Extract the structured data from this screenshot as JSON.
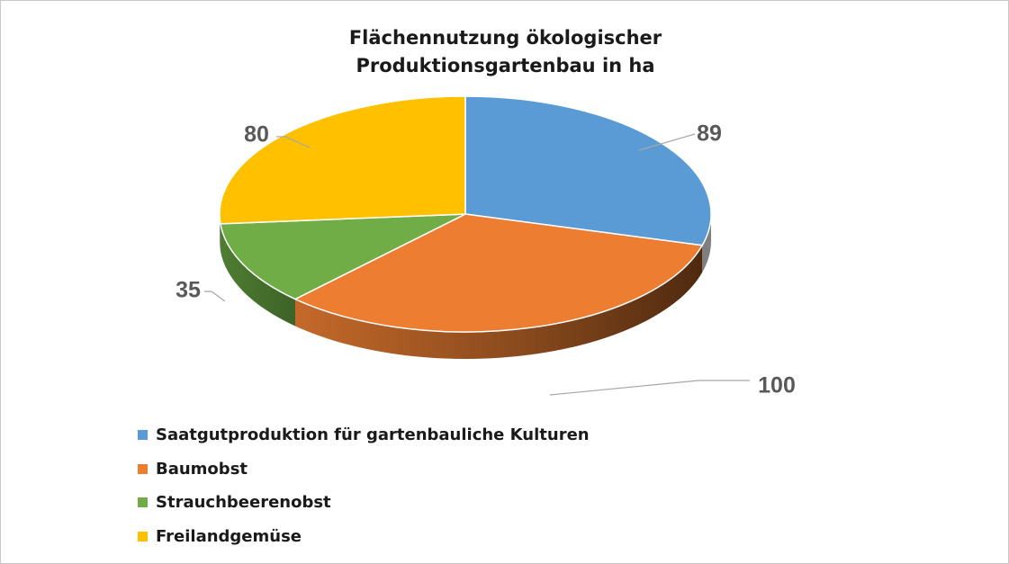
{
  "chart_data": {
    "type": "pie",
    "title": "Flächennutzung ökologischer\nProduktionsgartenbau in ha",
    "categories": [
      "Saatgutproduktion für gartenbauliche Kulturen",
      "Baumobst",
      "Strauchbeerenobst",
      "Freilandgemüse"
    ],
    "values": [
      89,
      100,
      35,
      80
    ],
    "data_labels": [
      "89",
      "100",
      "35",
      "80"
    ],
    "colors": [
      "#5b9bd5",
      "#ed7d31",
      "#70ad47",
      "#ffc000"
    ],
    "legend_position": "bottom-left",
    "style": "3d"
  }
}
